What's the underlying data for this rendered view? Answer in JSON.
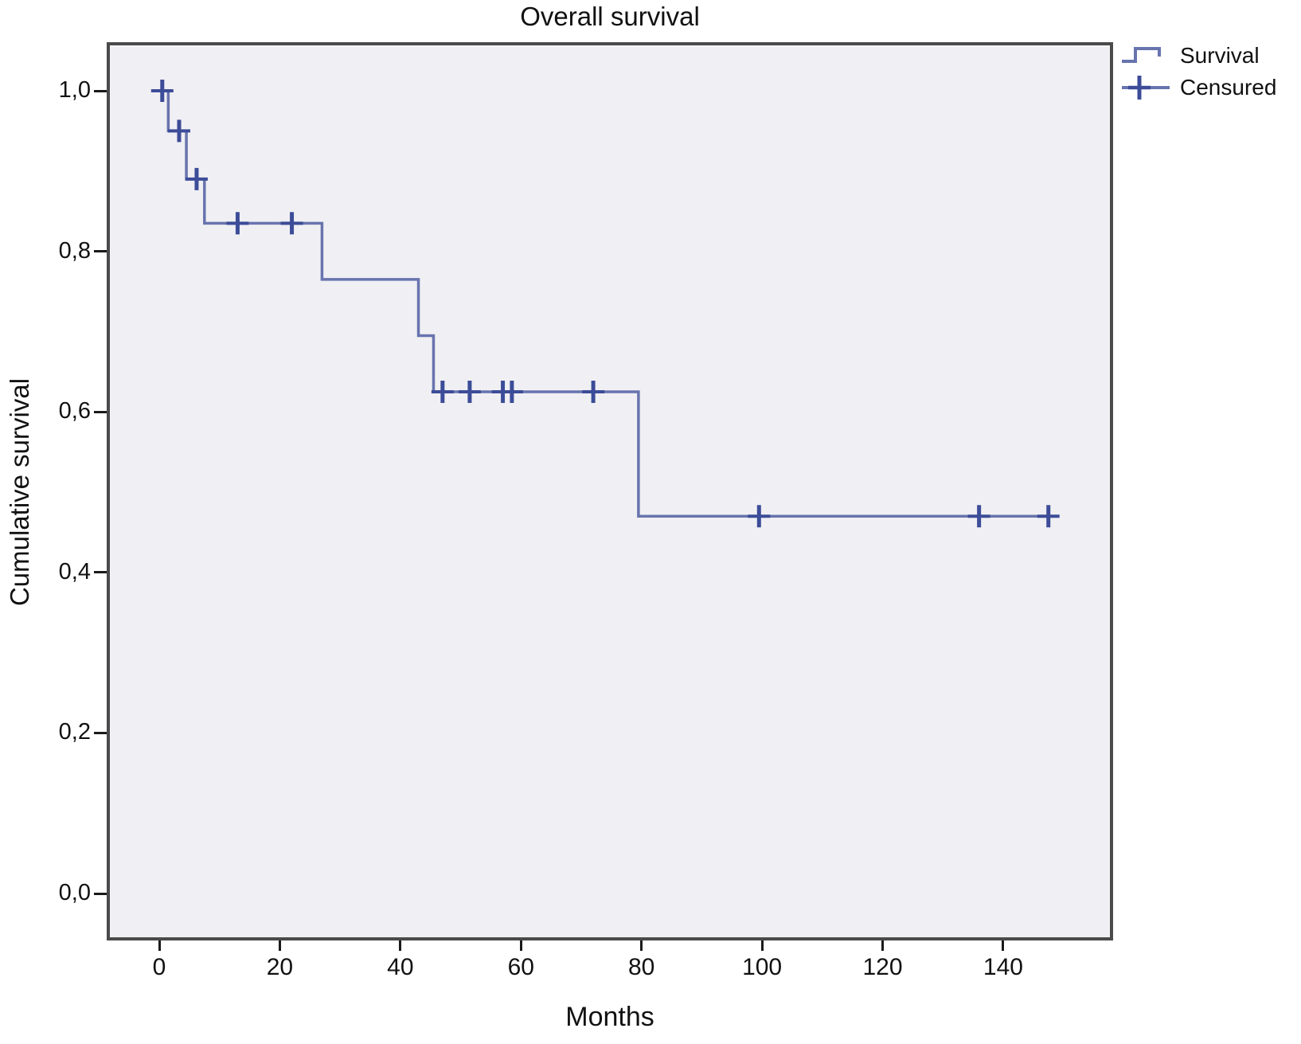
{
  "figure": {
    "title": "Overall survival",
    "x_axis": {
      "label": "Months",
      "tick_labels": [
        "0",
        "20",
        "40",
        "60",
        "80",
        "100",
        "120",
        "140"
      ]
    },
    "y_axis": {
      "label": "Cumulative survival",
      "tick_labels": [
        "0,0",
        "0,2",
        "0,4",
        "0,6",
        "0,8",
        "1,0"
      ]
    },
    "legend": {
      "items": [
        {
          "label": "Survival",
          "symbol": "step-line"
        },
        {
          "label": "Censured",
          "symbol": "plus"
        }
      ]
    }
  },
  "chart_data": {
    "type": "line",
    "subtype": "kaplan_meier_step",
    "title": "Overall survival",
    "xlabel": "Months",
    "ylabel": "Cumulative survival",
    "xlim": [
      -8.5,
      158
    ],
    "ylim": [
      -0.06,
      1.06
    ],
    "x_ticks": [
      0,
      20,
      40,
      60,
      80,
      100,
      120,
      140
    ],
    "y_ticks": [
      0.0,
      0.2,
      0.4,
      0.6,
      0.8,
      1.0
    ],
    "decimal_separator": ",",
    "grid": false,
    "legend_position": "top-right-outside",
    "plot_background": "#f0eff3",
    "frame_color": "#4a4a4a",
    "series": [
      {
        "name": "Survival",
        "color": "#6874ae",
        "line_width": 3.5,
        "steps": [
          {
            "from": 0,
            "to": 1.5,
            "survival": 1.0
          },
          {
            "from": 1.5,
            "to": 4.5,
            "survival": 0.95
          },
          {
            "from": 4.5,
            "to": 7.5,
            "survival": 0.89
          },
          {
            "from": 7.5,
            "to": 27,
            "survival": 0.835
          },
          {
            "from": 27,
            "to": 43,
            "survival": 0.765
          },
          {
            "from": 43,
            "to": 45.5,
            "survival": 0.695
          },
          {
            "from": 45.5,
            "to": 79.5,
            "survival": 0.625
          },
          {
            "from": 79.5,
            "to": 149,
            "survival": 0.47
          }
        ]
      }
    ],
    "censored": {
      "name": "Censured",
      "color": "#3c4c98",
      "points": [
        {
          "t": 0.5,
          "s": 1.0
        },
        {
          "t": 3.3,
          "s": 0.95
        },
        {
          "t": 6.2,
          "s": 0.89
        },
        {
          "t": 13,
          "s": 0.835
        },
        {
          "t": 22,
          "s": 0.835
        },
        {
          "t": 47,
          "s": 0.625
        },
        {
          "t": 51.5,
          "s": 0.625
        },
        {
          "t": 57,
          "s": 0.625
        },
        {
          "t": 58.5,
          "s": 0.625
        },
        {
          "t": 72,
          "s": 0.625
        },
        {
          "t": 99.5,
          "s": 0.47
        },
        {
          "t": 136,
          "s": 0.47
        },
        {
          "t": 147.5,
          "s": 0.47
        }
      ]
    }
  }
}
